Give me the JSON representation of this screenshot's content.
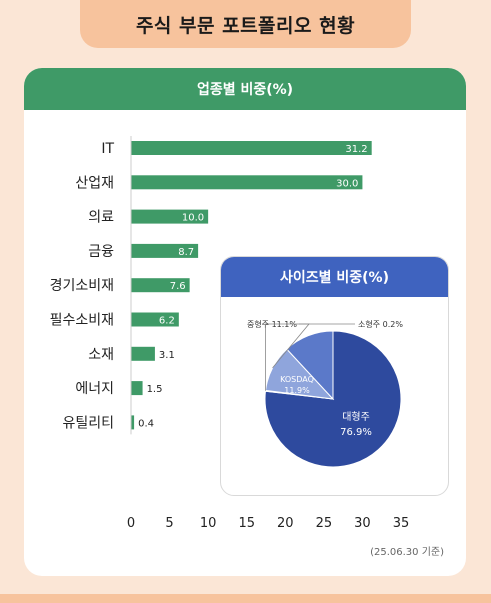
{
  "page_title": "주식 부문 포트폴리오 현황",
  "footnote": "(25.06.30 기준)",
  "chart_data": [
    {
      "type": "bar",
      "title": "업종별 비중(%)",
      "orientation": "horizontal",
      "categories": [
        "IT",
        "산업재",
        "의료",
        "금융",
        "경기소비재",
        "필수소비재",
        "소재",
        "에너지",
        "유틸리티"
      ],
      "values": [
        31.2,
        30.0,
        10.0,
        8.7,
        7.6,
        6.2,
        3.1,
        1.5,
        0.4
      ],
      "value_labels": [
        "31.2",
        "30.0",
        "10.0",
        "8.7",
        "7.6",
        "6.2",
        "3.1",
        "1.5",
        "0.4"
      ],
      "xlim": [
        0,
        35
      ],
      "xticks": [
        "0",
        "5",
        "10",
        "15",
        "20",
        "25",
        "30",
        "35"
      ],
      "grid": false,
      "bar_color": "#3f9a67"
    },
    {
      "type": "pie",
      "title": "사이즈별 비중(%)",
      "slices": [
        {
          "label": "대형주",
          "value": 76.9,
          "text": "76.9%",
          "color": "#2e4a9e"
        },
        {
          "label": "소형주",
          "value": 0.2,
          "text": "소형주 0.2%",
          "color": "#cfd8ee"
        },
        {
          "label": "중형주",
          "value": 11.1,
          "text": "중형주 11.1%",
          "color": "#8fa5dc"
        },
        {
          "label": "KOSDAQ",
          "value": 11.9,
          "text": "11.9%",
          "color": "#5b79c9"
        }
      ]
    }
  ]
}
